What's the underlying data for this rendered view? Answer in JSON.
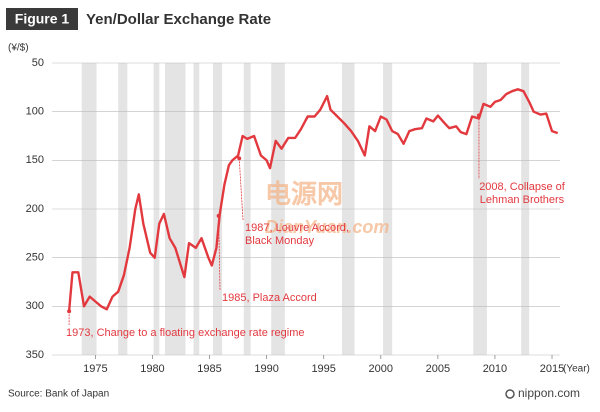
{
  "chart_data": {
    "type": "line",
    "figure_label": "Figure 1",
    "title": "Yen/Dollar Exchange Rate",
    "y_label": "(¥/$)",
    "x_label": "(Year)",
    "source": "Source: Bank of Japan",
    "logo": "nippon.com",
    "watermark": [
      "电源网",
      "DianYuan.com"
    ],
    "color": "#e2393f",
    "band_color": "#e4e4e4",
    "grid": true,
    "y_inverted": true,
    "xlim": [
      1971.2,
      2015.7
    ],
    "ylim": [
      50,
      350
    ],
    "xticks": [
      1975,
      1980,
      1985,
      1990,
      1995,
      2000,
      2005,
      2010,
      2015
    ],
    "yticks": [
      50,
      100,
      150,
      200,
      250,
      300,
      350
    ],
    "x": [
      1972.7,
      1973.0,
      1973.5,
      1974.0,
      1974.5,
      1975.0,
      1975.5,
      1976.0,
      1976.5,
      1977.0,
      1977.5,
      1978.0,
      1978.5,
      1978.8,
      1979.2,
      1979.8,
      1980.2,
      1980.6,
      1981.0,
      1981.5,
      1982.0,
      1982.8,
      1983.2,
      1983.8,
      1984.3,
      1984.9,
      1985.2,
      1985.6,
      1985.9,
      1986.3,
      1986.7,
      1987.0,
      1987.5,
      1987.9,
      1988.3,
      1988.9,
      1989.5,
      1990.0,
      1990.3,
      1990.8,
      1991.3,
      1991.9,
      1992.5,
      1993.0,
      1993.6,
      1994.2,
      1994.7,
      1995.3,
      1995.6,
      1996.2,
      1996.8,
      1997.4,
      1998.0,
      1998.6,
      1999.0,
      1999.5,
      2000.0,
      2000.5,
      2001.0,
      2001.5,
      2002.0,
      2002.5,
      2003.0,
      2003.6,
      2004.0,
      2004.6,
      2005.0,
      2005.6,
      2006.0,
      2006.6,
      2007.0,
      2007.5,
      2008.0,
      2008.6,
      2009.0,
      2009.6,
      2010.0,
      2010.5,
      2011.0,
      2011.5,
      2012.0,
      2012.5,
      2013.0,
      2013.4,
      2014.0,
      2014.5,
      2015.0,
      2015.5
    ],
    "values": [
      305,
      265,
      265,
      300,
      290,
      295,
      300,
      303,
      290,
      285,
      268,
      240,
      200,
      185,
      215,
      245,
      250,
      215,
      205,
      230,
      240,
      270,
      235,
      240,
      230,
      250,
      258,
      240,
      205,
      175,
      155,
      150,
      145,
      125,
      128,
      125,
      145,
      150,
      158,
      130,
      138,
      127,
      127,
      118,
      105,
      105,
      98,
      84,
      98,
      105,
      112,
      120,
      130,
      145,
      115,
      120,
      105,
      108,
      120,
      123,
      133,
      120,
      118,
      117,
      107,
      110,
      104,
      112,
      117,
      115,
      121,
      123,
      105,
      107,
      92,
      95,
      90,
      88,
      82,
      79,
      77,
      79,
      90,
      100,
      103,
      102,
      120,
      122
    ],
    "shaded_periods": [
      [
        1973.8,
        1975.1
      ],
      [
        1977.0,
        1977.8
      ],
      [
        1980.1,
        1980.6
      ],
      [
        1981.1,
        1982.9
      ],
      [
        1983.6,
        1984.1
      ],
      [
        1985.3,
        1986.1
      ],
      [
        1988.0,
        1988.6
      ],
      [
        1990.4,
        1991.6
      ],
      [
        1996.6,
        1997.7
      ],
      [
        2000.2,
        2001.0
      ],
      [
        2008.1,
        2009.3
      ],
      [
        2012.3,
        2013.0
      ]
    ],
    "annotations": [
      {
        "lines": [
          "1973, Change to a floating exchange rate regime"
        ],
        "x": 1972.7,
        "y": 305
      },
      {
        "lines": [
          "1985, Plaza Accord"
        ],
        "x": 1985.8,
        "y": 207
      },
      {
        "lines": [
          "1987, Louvre Accord,",
          "Black Monday"
        ],
        "x": 1987.6,
        "y": 148
      },
      {
        "lines": [
          "2008, Collapse of",
          "Lehman Brothers"
        ],
        "x": 2008.6,
        "y": 104
      }
    ]
  }
}
